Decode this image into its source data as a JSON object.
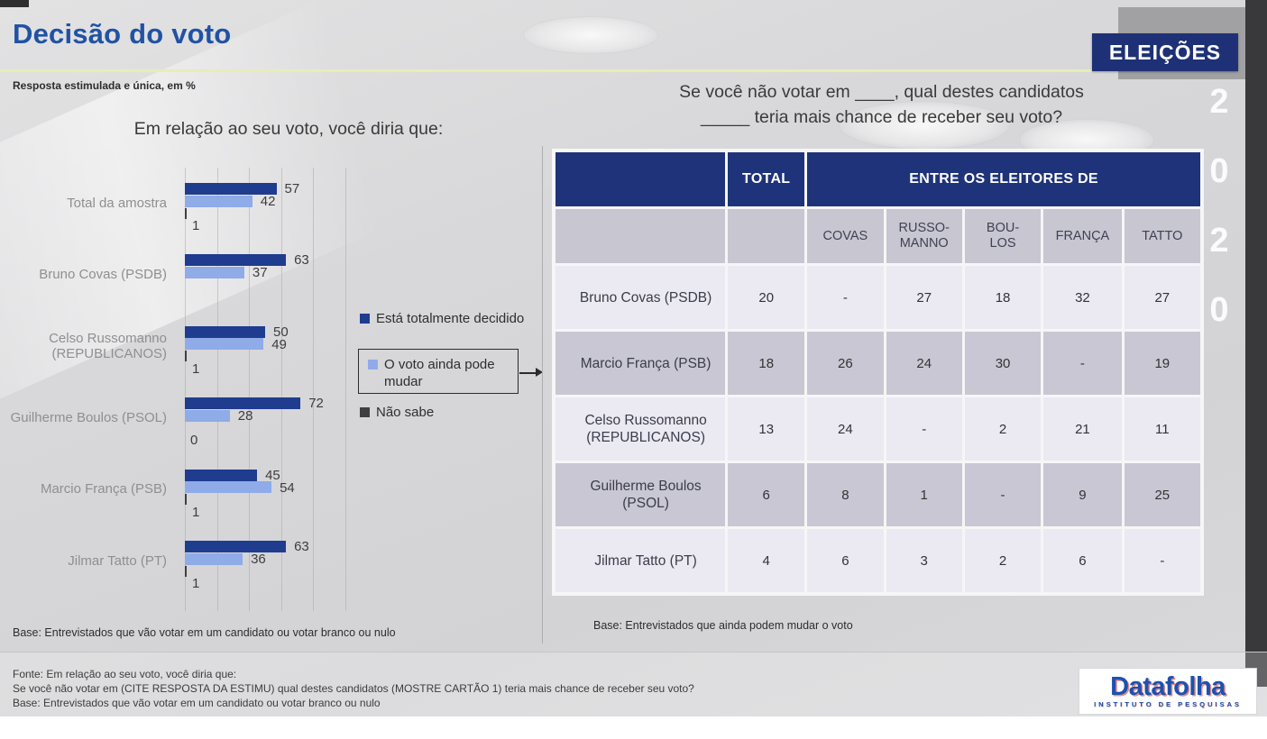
{
  "header": {
    "title": "Decisão do voto",
    "subtitle": "Resposta estimulada e única, em %",
    "badge": "ELEIÇÕES",
    "year_digits": [
      "2",
      "0",
      "2",
      "0"
    ]
  },
  "chart_data": {
    "type": "bar",
    "orientation": "horizontal",
    "title": "Em relação ao seu voto, você diria que:",
    "categories": [
      "Total da amostra",
      "Bruno Covas (PSDB)",
      "Celso Russomanno (REPUBLICANOS)",
      "Guilherme Boulos (PSOL)",
      "Marcio França (PSB)",
      "Jilmar Tatto (PT)"
    ],
    "series": [
      {
        "name": "Está totalmente decidido",
        "color": "#1f3c8e",
        "values": [
          57,
          63,
          50,
          72,
          45,
          63
        ]
      },
      {
        "name": "O voto ainda pode mudar",
        "color": "#8fabe8",
        "values": [
          42,
          37,
          49,
          28,
          54,
          36
        ]
      },
      {
        "name": "Não sabe",
        "color": "#3f3f3f",
        "values": [
          1,
          null,
          1,
          0,
          1,
          1
        ]
      }
    ],
    "xlim": [
      0,
      100
    ],
    "gridline_step": 20,
    "grid": true,
    "legend_position": "right",
    "value_labels": true
  },
  "legend": {
    "items": [
      {
        "label": "Está totalmente decidido",
        "color": "#1f3c8e",
        "boxed": false
      },
      {
        "label": "O voto ainda pode mudar",
        "color": "#8fabe8",
        "boxed": true
      },
      {
        "label": "Não sabe",
        "color": "#3f3f3f",
        "boxed": false
      }
    ]
  },
  "left_panel": {
    "base_note": "Base: Entrevistados que vão votar em um candidato ou votar branco ou nulo"
  },
  "right_panel": {
    "question_line1": "Se você não votar em ____, qual destes candidatos",
    "question_line2": "_____ teria mais chance de receber seu voto?",
    "base_note": "Base: Entrevistados que ainda podem mudar o voto",
    "table": {
      "total_header": "TOTAL",
      "group_header": "ENTRE OS ELEITORES DE",
      "sub_headers": [
        [
          "COVAS"
        ],
        [
          "RUSSO-",
          "MANNO"
        ],
        [
          "BOU-",
          "LOS"
        ],
        [
          "FRANÇA"
        ],
        [
          "TATTO"
        ]
      ],
      "rows": [
        {
          "name": "Bruno Covas (PSDB)",
          "total": "20",
          "values": [
            "-",
            "27",
            "18",
            "32",
            "27"
          ]
        },
        {
          "name": "Marcio França (PSB)",
          "total": "18",
          "values": [
            "26",
            "24",
            "30",
            "-",
            "19"
          ]
        },
        {
          "name": "Celso Russomanno (REPUBLICANOS)",
          "total": "13",
          "values": [
            "24",
            "-",
            "2",
            "21",
            "11"
          ]
        },
        {
          "name": "Guilherme Boulos (PSOL)",
          "total": "6",
          "values": [
            "8",
            "1",
            "-",
            "9",
            "25"
          ]
        },
        {
          "name": "Jilmar Tatto (PT)",
          "total": "4",
          "values": [
            "6",
            "3",
            "2",
            "6",
            "-"
          ]
        }
      ]
    }
  },
  "footer": {
    "lines": [
      "Fonte: Em relação ao seu voto, você diria que:",
      "Se você não votar em (CITE RESPOSTA DA ESTIMU) qual destes candidatos (MOSTRE CARTÃO 1) teria mais chance de receber seu voto?",
      "Base: Entrevistados que vão votar em um candidato ou votar branco ou nulo"
    ]
  },
  "logo": {
    "name": "Datafolha",
    "tagline": "INSTITUTO DE PESQUISAS"
  },
  "colors": {
    "accent_blue_title": "#2152a3",
    "navy_header": "#1e3379",
    "bar_dark": "#1f3c8e",
    "bar_light": "#8fabe8",
    "bar_gray": "#3f3f3f",
    "row_light": "#ebe9f2",
    "row_gray": "#c9c7d3",
    "highlight_line": "#e9edb4"
  }
}
